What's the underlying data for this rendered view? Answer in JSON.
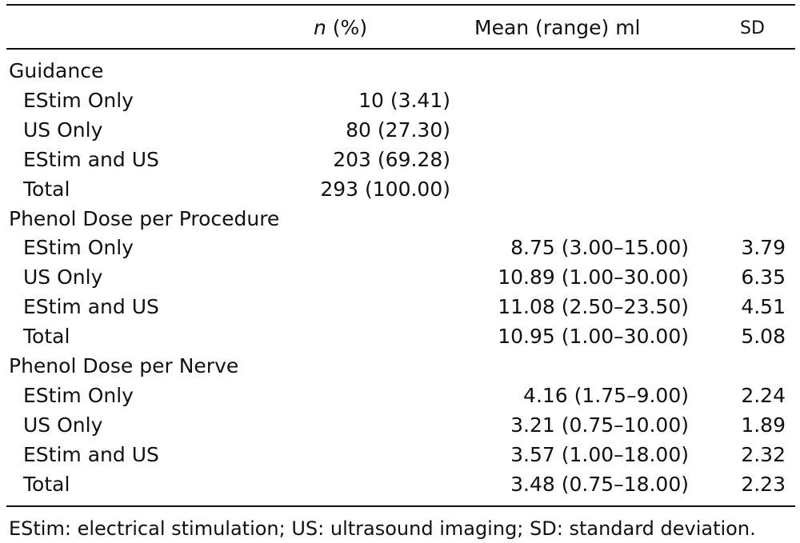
{
  "header": {
    "n_italic": "n",
    "n_pct": " (%)",
    "mean_range": "Mean (range) ml",
    "sd": "SD"
  },
  "sections": [
    {
      "title": "Guidance",
      "rows": [
        {
          "label": "EStim Only",
          "n": "10 (3.41)",
          "mean": "",
          "sd": ""
        },
        {
          "label": "US Only",
          "n": "80 (27.30)",
          "mean": "",
          "sd": ""
        },
        {
          "label": "EStim and US",
          "n": "203 (69.28)",
          "mean": "",
          "sd": ""
        },
        {
          "label": "Total",
          "n": "293 (100.00)",
          "mean": "",
          "sd": ""
        }
      ]
    },
    {
      "title": "Phenol Dose per Procedure",
      "rows": [
        {
          "label": "EStim Only",
          "n": "",
          "mean": "8.75 (3.00–15.00)",
          "sd": "3.79"
        },
        {
          "label": "US Only",
          "n": "",
          "mean": "10.89 (1.00–30.00)",
          "sd": "6.35"
        },
        {
          "label": "EStim and US",
          "n": "",
          "mean": "11.08 (2.50–23.50)",
          "sd": "4.51"
        },
        {
          "label": "Total",
          "n": "",
          "mean": "10.95 (1.00–30.00)",
          "sd": "5.08"
        }
      ]
    },
    {
      "title": "Phenol Dose per Nerve",
      "rows": [
        {
          "label": "EStim Only",
          "n": "",
          "mean": "4.16 (1.75–9.00)",
          "sd": "2.24"
        },
        {
          "label": "US Only",
          "n": "",
          "mean": "3.21 (0.75–10.00)",
          "sd": "1.89"
        },
        {
          "label": "EStim and US",
          "n": "",
          "mean": "3.57 (1.00–18.00)",
          "sd": "2.32"
        },
        {
          "label": "Total",
          "n": "",
          "mean": "3.48 (0.75–18.00)",
          "sd": "2.23"
        }
      ]
    }
  ],
  "footnote": "EStim: electrical stimulation; US: ultrasound imaging; SD: standard deviation."
}
